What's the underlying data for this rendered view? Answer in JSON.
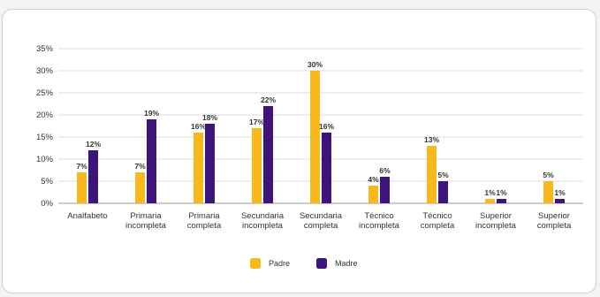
{
  "chart_data": {
    "type": "bar",
    "categories": [
      [
        "Analfabeto"
      ],
      [
        "Primaria",
        "incompleta"
      ],
      [
        "Primaria",
        "completa"
      ],
      [
        "Secundaria",
        "incompleta"
      ],
      [
        "Secundaria",
        "completa"
      ],
      [
        "Técnico",
        "incompleta"
      ],
      [
        "Técnico",
        "completa"
      ],
      [
        "Superior",
        "incompleta"
      ],
      [
        "Superior",
        "completa"
      ]
    ],
    "series": [
      {
        "name": "Padre",
        "color": "#f9b81b",
        "values": [
          7,
          7,
          16,
          17,
          30,
          4,
          13,
          1,
          5
        ]
      },
      {
        "name": "Madre",
        "color": "#3d157a",
        "values": [
          12,
          19,
          18,
          22,
          16,
          6,
          5,
          1,
          1
        ]
      }
    ],
    "ylim": [
      0,
      35
    ],
    "yticks": [
      "0%",
      "5%",
      "10%",
      "15%",
      "20%",
      "25%",
      "30%",
      "35%"
    ],
    "grid": true,
    "legend_position": "bottom"
  }
}
